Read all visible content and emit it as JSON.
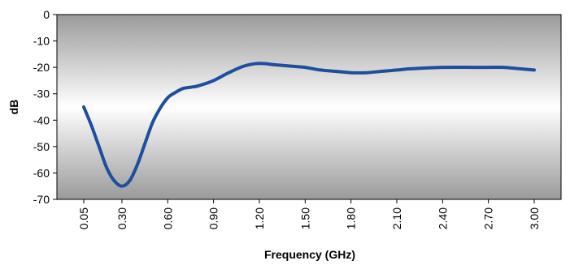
{
  "chart_data": {
    "type": "line",
    "xlabel": "Frequency (GHz)",
    "ylabel": "dB",
    "ylim": [
      -70,
      0
    ],
    "yticks": [
      "0",
      "-10",
      "-20",
      "-30",
      "-40",
      "-50",
      "-60",
      "-70"
    ],
    "xticks": [
      "0.05",
      "0.30",
      "0.60",
      "0.90",
      "1.20",
      "1.50",
      "1.80",
      "2.10",
      "2.40",
      "2.70",
      "3.00"
    ],
    "grid": false,
    "legend": "none",
    "colors": {
      "line": "#1f4e9c",
      "plot_top": "#9a9a9a",
      "plot_mid": "#ffffff",
      "plot_bottom": "#9a9a9a"
    },
    "series": [
      {
        "x": [
          0.05,
          0.1,
          0.15,
          0.2,
          0.25,
          0.3,
          0.35,
          0.4,
          0.45,
          0.5,
          0.55,
          0.6,
          0.65,
          0.7,
          0.75,
          0.8,
          0.9,
          1.0,
          1.1,
          1.2,
          1.3,
          1.4,
          1.5,
          1.6,
          1.7,
          1.8,
          1.9,
          2.0,
          2.1,
          2.2,
          2.4,
          2.6,
          2.7,
          2.8,
          2.9,
          3.0
        ],
        "y": [
          -35,
          -42,
          -50,
          -58,
          -63,
          -65,
          -63,
          -57,
          -49,
          -41,
          -35.5,
          -31.5,
          -29.5,
          -28,
          -27.5,
          -27,
          -25,
          -22,
          -19.5,
          -18.5,
          -19,
          -19.5,
          -20,
          -21,
          -21.5,
          -22,
          -22,
          -21.5,
          -21,
          -20.5,
          -20,
          -20,
          -20,
          -20,
          -20.5,
          -21
        ]
      }
    ]
  }
}
